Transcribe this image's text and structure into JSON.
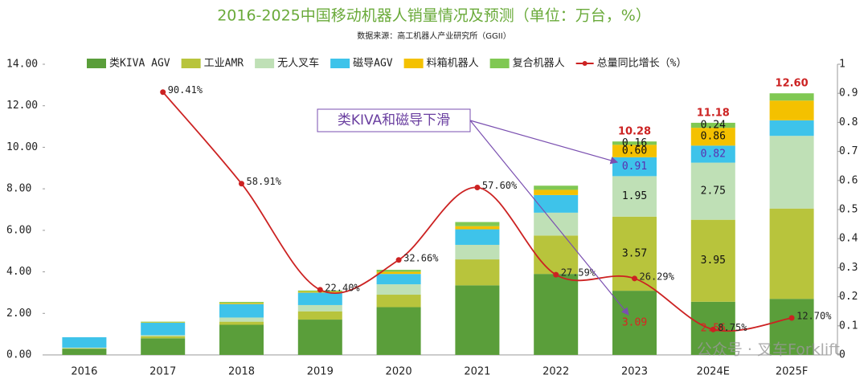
{
  "chart_data": {
    "type": "stacked_bar_line",
    "title": "2016-2025中国移动机器人销量情况及预测（单位：万台，%）",
    "subtitle": "数据来源：高工机器人产业研究所（GGII）",
    "categories": [
      "2016",
      "2017",
      "2018",
      "2019",
      "2020",
      "2021",
      "2022",
      "2023",
      "2024E",
      "2025F"
    ],
    "series": [
      {
        "name": "类KIVA AGV",
        "color": "#5a9e3a",
        "values": [
          0.3,
          0.8,
          1.45,
          1.7,
          2.3,
          3.35,
          3.9,
          3.09,
          2.56,
          2.7
        ],
        "value_labels": [
          null,
          null,
          null,
          null,
          null,
          null,
          null,
          "3.09",
          "2.56",
          null
        ]
      },
      {
        "name": "工业AMR",
        "color": "#b8c43c",
        "values": [
          0.02,
          0.1,
          0.15,
          0.4,
          0.6,
          1.25,
          1.85,
          3.57,
          3.95,
          4.35
        ],
        "value_labels": [
          null,
          null,
          null,
          null,
          null,
          null,
          null,
          "3.57",
          "3.95",
          null
        ]
      },
      {
        "name": "无人叉车",
        "color": "#bfe0b6",
        "values": [
          0.03,
          0.05,
          0.2,
          0.3,
          0.5,
          0.7,
          1.1,
          1.95,
          2.75,
          3.5
        ],
        "value_labels": [
          null,
          null,
          null,
          null,
          null,
          null,
          null,
          "1.95",
          "2.75",
          null
        ]
      },
      {
        "name": "磁导AGV",
        "color": "#3ec3ea",
        "values": [
          0.5,
          0.6,
          0.65,
          0.6,
          0.5,
          0.75,
          0.85,
          0.91,
          0.82,
          0.75
        ],
        "value_labels": [
          null,
          null,
          null,
          null,
          null,
          null,
          null,
          "0.91",
          "0.82",
          null
        ]
      },
      {
        "name": "料箱机器人",
        "color": "#f4c100",
        "values": [
          0,
          0.02,
          0.05,
          0.05,
          0.1,
          0.15,
          0.25,
          0.6,
          0.86,
          0.95
        ],
        "value_labels": [
          null,
          null,
          null,
          null,
          null,
          null,
          null,
          "0.60",
          "0.86",
          null
        ]
      },
      {
        "name": "复合机器人",
        "color": "#80c853",
        "values": [
          0,
          0.03,
          0.05,
          0.05,
          0.1,
          0.2,
          0.2,
          0.16,
          0.24,
          0.35
        ],
        "value_labels": [
          null,
          null,
          null,
          null,
          null,
          null,
          null,
          "0.16",
          "0.24",
          null
        ]
      },
      {
        "name": "总量同比增长（%）",
        "color": "#cc2222",
        "axis": "y2",
        "type": "line",
        "values": [
          null,
          0.9041,
          0.5891,
          0.224,
          0.3266,
          0.576,
          0.2759,
          0.2629,
          0.0875,
          0.127
        ],
        "value_labels": [
          null,
          "90.41%",
          "58.91%",
          "22.40%",
          "32.66%",
          "57.60%",
          "27.59%",
          "26.29%",
          "8.75%",
          "12.70%"
        ]
      }
    ],
    "totals": {
      "values": [
        null,
        null,
        null,
        null,
        null,
        null,
        null,
        10.28,
        11.18,
        12.6
      ],
      "value_labels": [
        null,
        null,
        null,
        null,
        null,
        null,
        null,
        "10.28",
        "11.18",
        "12.60"
      ],
      "color": "#cc2222"
    },
    "ylim": [
      0,
      14
    ],
    "yticks": [
      {
        "value": 0,
        "label": "0.00"
      },
      {
        "value": 2,
        "label": "2.00"
      },
      {
        "value": 4,
        "label": "4.00"
      },
      {
        "value": 6,
        "label": "6.00"
      },
      {
        "value": 8,
        "label": "8.00"
      },
      {
        "value": 10,
        "label": "10.00"
      },
      {
        "value": 12,
        "label": "12.00"
      },
      {
        "value": 14,
        "label": "14.00"
      }
    ],
    "y2lim": [
      0,
      1
    ],
    "y2ticks": [
      0,
      0.1,
      0.2,
      0.3,
      0.4,
      0.5,
      0.6,
      0.7,
      0.8,
      0.9,
      1
    ],
    "annotation": "类KIVA和磁导下滑",
    "watermark": "公众号 · 叉车Forklift",
    "legend": "top"
  }
}
